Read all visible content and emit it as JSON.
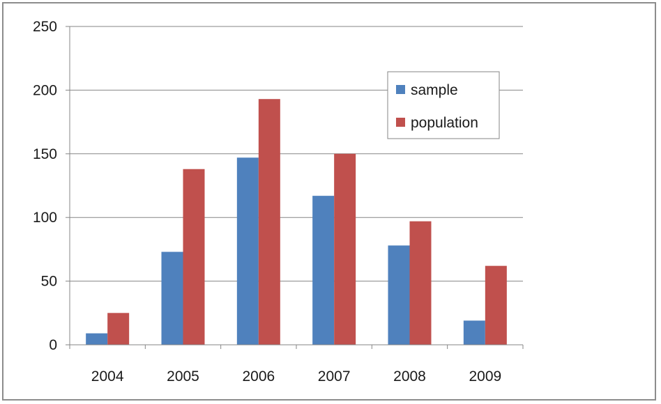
{
  "chart_data": {
    "type": "bar",
    "categories": [
      "2004",
      "2005",
      "2006",
      "2007",
      "2008",
      "2009"
    ],
    "series": [
      {
        "name": "sample",
        "values": [
          9,
          73,
          147,
          117,
          78,
          19
        ],
        "color": "#4f81bd"
      },
      {
        "name": "population",
        "values": [
          25,
          138,
          193,
          150,
          97,
          62
        ],
        "color": "#c0504d"
      }
    ],
    "title": "",
    "xlabel": "",
    "ylabel": "",
    "ylim": [
      0,
      250
    ],
    "yticks": [
      0,
      50,
      100,
      150,
      200,
      250
    ],
    "grid": true,
    "legend_position": "top-right"
  }
}
